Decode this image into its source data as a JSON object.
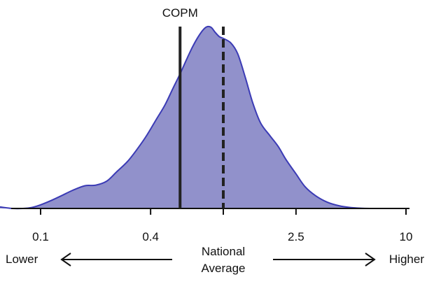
{
  "chart_data": {
    "type": "area",
    "scale": "log",
    "xlim": [
      0.05,
      10
    ],
    "x_ticks": [
      {
        "value": 0.1,
        "label": "0.1"
      },
      {
        "value": 0.4,
        "label": "0.4"
      },
      {
        "value": 1,
        "label": ""
      },
      {
        "value": 2.5,
        "label": "2.5"
      },
      {
        "value": 10,
        "label": "10"
      }
    ],
    "density": {
      "x": [
        0.05,
        0.055,
        0.06,
        0.07,
        0.08,
        0.09,
        0.1,
        0.115,
        0.13,
        0.15,
        0.175,
        0.2,
        0.23,
        0.26,
        0.3,
        0.34,
        0.38,
        0.43,
        0.48,
        0.53,
        0.58,
        0.63,
        0.68,
        0.73,
        0.78,
        0.82,
        0.86,
        0.9,
        0.95,
        1.0,
        1.1,
        1.2,
        1.32,
        1.45,
        1.6,
        1.8,
        2.0,
        2.2,
        2.5,
        2.8,
        3.2,
        3.7,
        4.3,
        5.0,
        5.8,
        6.7,
        7.5
      ],
      "y": [
        0.002,
        0.012,
        0.008,
        0.0,
        0.0,
        0.006,
        0.02,
        0.045,
        0.07,
        0.1,
        0.125,
        0.128,
        0.15,
        0.2,
        0.26,
        0.33,
        0.4,
        0.49,
        0.57,
        0.66,
        0.74,
        0.82,
        0.89,
        0.945,
        0.985,
        1.0,
        0.995,
        0.97,
        0.945,
        0.935,
        0.91,
        0.85,
        0.72,
        0.58,
        0.47,
        0.4,
        0.34,
        0.27,
        0.19,
        0.12,
        0.07,
        0.035,
        0.015,
        0.005,
        0.001,
        0.0,
        0.0
      ]
    },
    "fill_color": "#9191cb",
    "line_color": "#3b3bb5",
    "reference_lines": [
      {
        "name": "COPM",
        "value": 0.58,
        "style": "solid",
        "label": "COPM"
      },
      {
        "name": "National Average",
        "value": 1.0,
        "style": "dashed",
        "label": ""
      }
    ],
    "annotations": {
      "left": "Lower",
      "right": "Higher",
      "center_line1": "National",
      "center_line2": "Average"
    },
    "grid": false
  }
}
